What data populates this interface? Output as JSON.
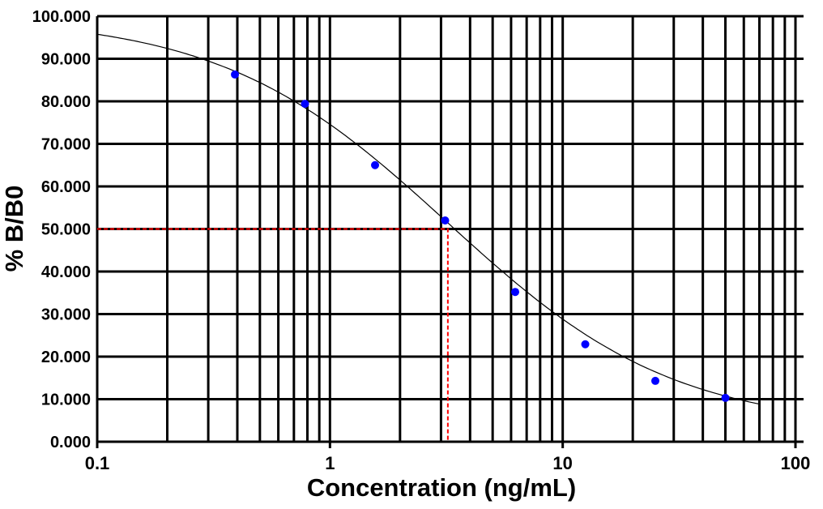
{
  "chart_data": {
    "type": "scatter",
    "title": "",
    "xlabel": "Concentration (ng/mL)",
    "ylabel": "% B/B0",
    "x_scale": "log",
    "xlim": [
      0.1,
      100
    ],
    "ylim": [
      0,
      100
    ],
    "grid": true,
    "x_ticks": [
      "0.1",
      "1",
      "10",
      "100"
    ],
    "y_ticks": [
      "0.000",
      "10.000",
      "20.000",
      "30.000",
      "40.000",
      "50.000",
      "60.000",
      "70.000",
      "80.000",
      "90.000",
      "100.000"
    ],
    "points": {
      "x": [
        0.390625,
        0.78125,
        1.5625,
        3.125,
        6.25,
        12.5,
        25,
        50
      ],
      "y": [
        86.3,
        79.4,
        65.0,
        52.0,
        35.2,
        22.9,
        14.3,
        10.3
      ],
      "color": "#0000ff"
    },
    "fit_curve": {
      "model": "4PL",
      "top": 100,
      "bottom": 3,
      "ec50": 3.2,
      "hill": 0.89,
      "x_range": [
        0.1,
        70
      ],
      "color": "#000000"
    },
    "reference_line": {
      "y": 50,
      "x": 3.21,
      "color": "#ff0000",
      "style": "dashed"
    }
  }
}
